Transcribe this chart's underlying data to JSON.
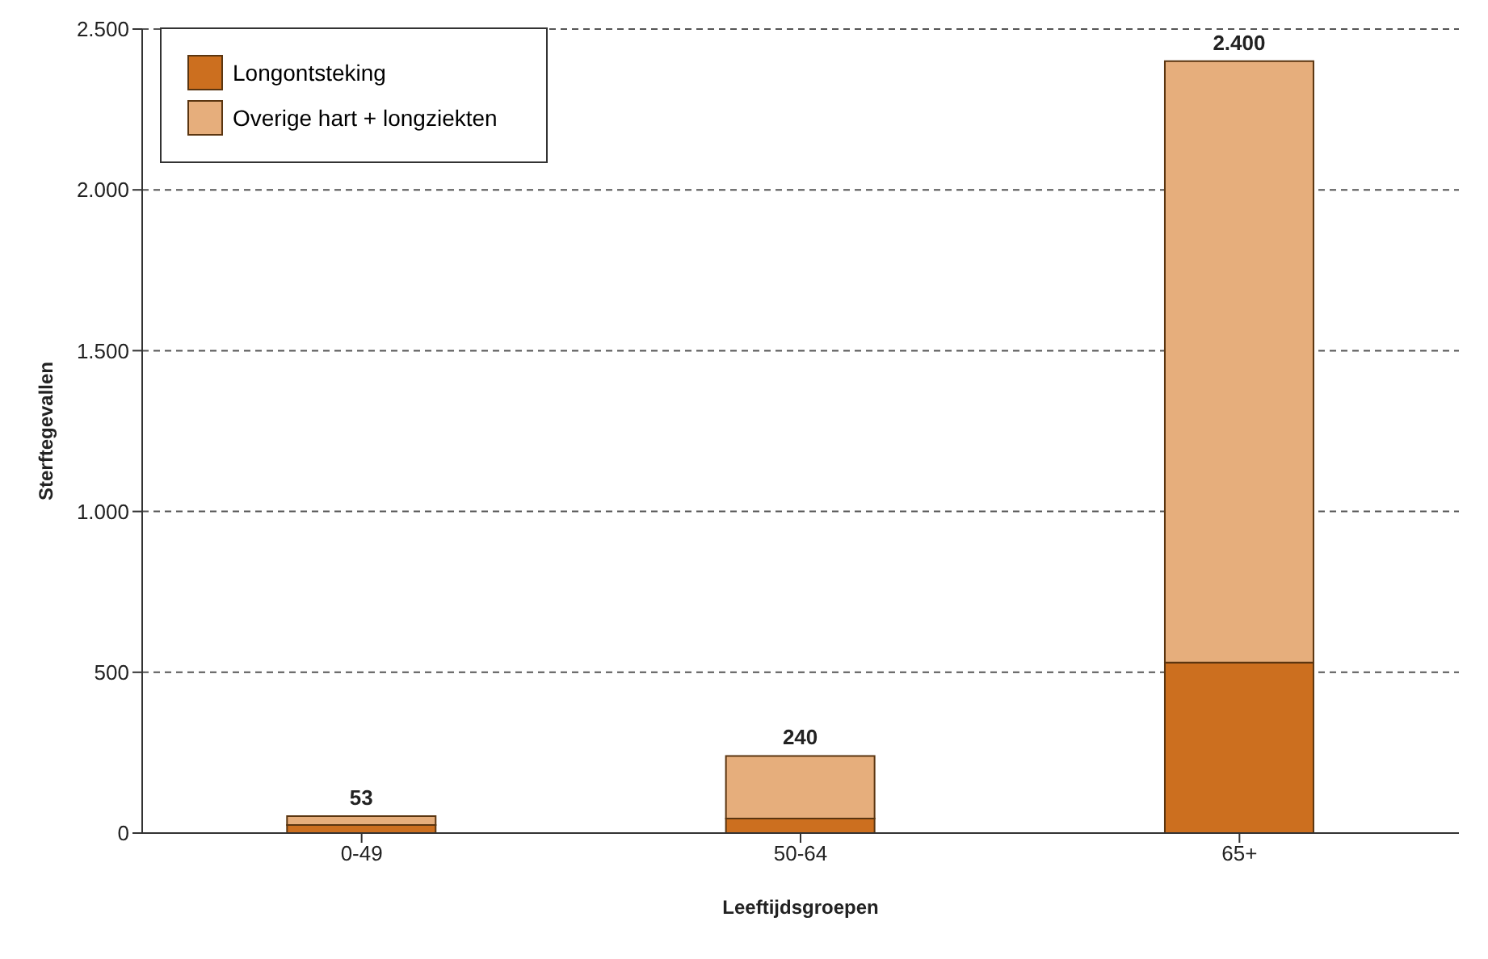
{
  "chart_data": {
    "type": "bar",
    "xlabel": "Leeftijdsgroepen",
    "ylabel": "Sterftegevallen",
    "categories": [
      "0-49",
      "50-64",
      "65+"
    ],
    "series": [
      {
        "name": "Longontsteking",
        "color": "#cc6f1f",
        "values": [
          25,
          45,
          530
        ]
      },
      {
        "name": "Overige hart + longziekten",
        "color": "#e6ae7c",
        "values": [
          28,
          195,
          1870
        ]
      }
    ],
    "stacked": true,
    "totals": [
      "53",
      "240",
      "2.400"
    ],
    "ylim": [
      0,
      2500
    ],
    "yticks": [
      {
        "value": 0,
        "label": "0"
      },
      {
        "value": 500,
        "label": "500"
      },
      {
        "value": 1000,
        "label": "1.000"
      },
      {
        "value": 1500,
        "label": "1.500"
      },
      {
        "value": 2000,
        "label": "2.000"
      },
      {
        "value": 2500,
        "label": "2.500"
      }
    ],
    "grid": "y",
    "legend": "top left"
  }
}
